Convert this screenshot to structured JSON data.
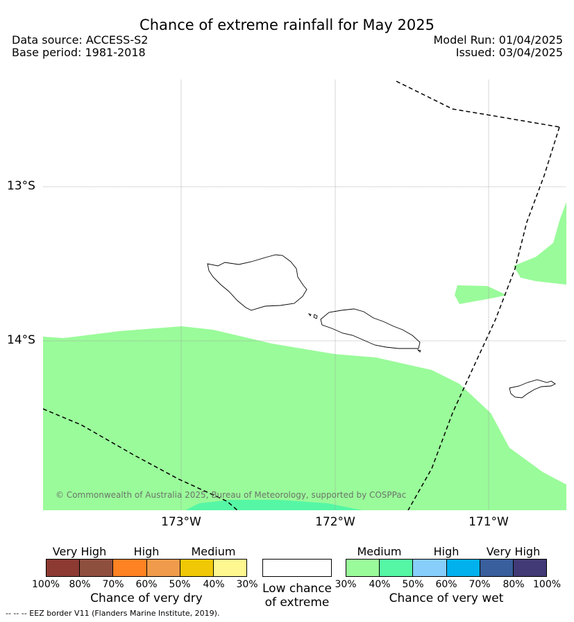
{
  "title": "Chance of extreme rainfall for May 2025",
  "data_source": "Data source: ACCESS-S2",
  "base_period": "Base period: 1981-2018",
  "model_run": "Model Run: 01/04/2025",
  "issued": "Issued: 03/04/2025",
  "map": {
    "lat_labels": [
      "13°S",
      "14°S"
    ],
    "lon_labels": [
      "173°W",
      "172°W",
      "171°W"
    ],
    "copyright": "© Commonwealth of Australia 2025, Bureau of Meteorology, supported by COSPPac",
    "colors": {
      "medium_wet": "#9afb9a",
      "medium_wet_high": "#55f7a5",
      "land_outline": "#000000",
      "eez_line": "#000000"
    }
  },
  "legend": {
    "dry": {
      "headers": [
        "Very High",
        "High",
        "Medium"
      ],
      "colors": [
        "#8c3a32",
        "#8f4f3f",
        "#ff8223",
        "#f09b4c",
        "#f0c806",
        "#fff78f"
      ],
      "ticks": [
        "100%",
        "80%",
        "70%",
        "60%",
        "50%",
        "40%",
        "30%"
      ],
      "title": "Chance of very dry"
    },
    "low": {
      "line1": "Low chance",
      "line2": "of extreme",
      "color": "#ffffff"
    },
    "wet": {
      "headers": [
        "Medium",
        "High",
        "Very High"
      ],
      "colors": [
        "#9afb9a",
        "#55f7a5",
        "#87cefa",
        "#00b1ee",
        "#395f9c",
        "#413a76"
      ],
      "ticks": [
        "30%",
        "40%",
        "50%",
        "60%",
        "70%",
        "80%",
        "100%"
      ],
      "title": "Chance of very wet"
    }
  },
  "footer": "--  --  -- EEZ border V11 (Flanders Marine Institute, 2019)."
}
